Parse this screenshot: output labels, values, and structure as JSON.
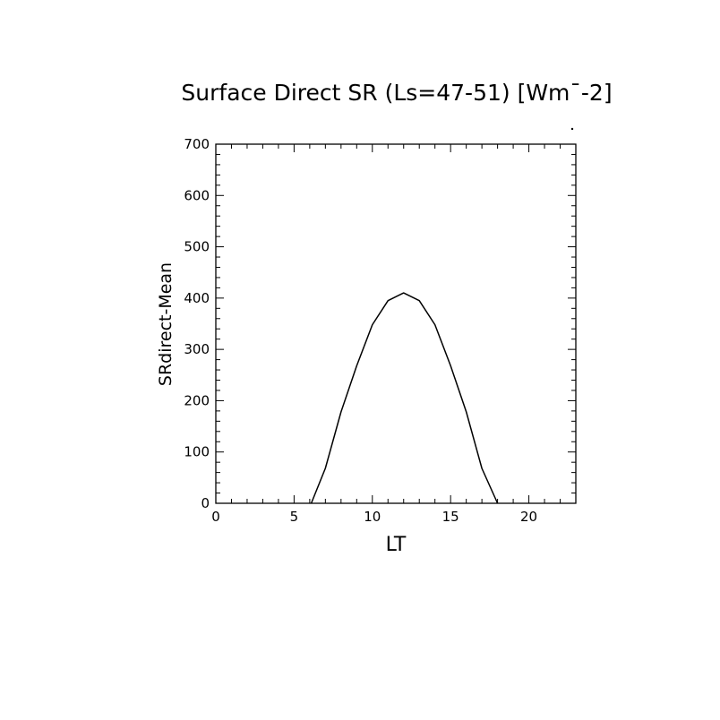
{
  "chart_data": {
    "type": "line",
    "title": "Surface Direct SR (Ls=47-51) [Wm¯-2]",
    "xlabel": "LT",
    "ylabel": "SRdirect-Mean",
    "xlim": [
      0,
      23
    ],
    "ylim": [
      0,
      700
    ],
    "x_ticks": [
      0,
      5,
      10,
      15,
      20
    ],
    "y_ticks": [
      0,
      100,
      200,
      300,
      400,
      500,
      600,
      700
    ],
    "grid": false,
    "series": [
      {
        "x": [
          0,
          1,
          2,
          3,
          4,
          5,
          6,
          7,
          8,
          9,
          10,
          11,
          12,
          13,
          14,
          15,
          16,
          17,
          18,
          19,
          20,
          21,
          22,
          23
        ],
        "values": [
          0,
          0,
          0,
          0,
          0,
          0,
          0,
          68,
          178,
          268,
          348,
          395,
          410,
          395,
          348,
          268,
          178,
          68,
          0,
          0,
          0,
          0,
          0,
          0
        ]
      }
    ]
  }
}
